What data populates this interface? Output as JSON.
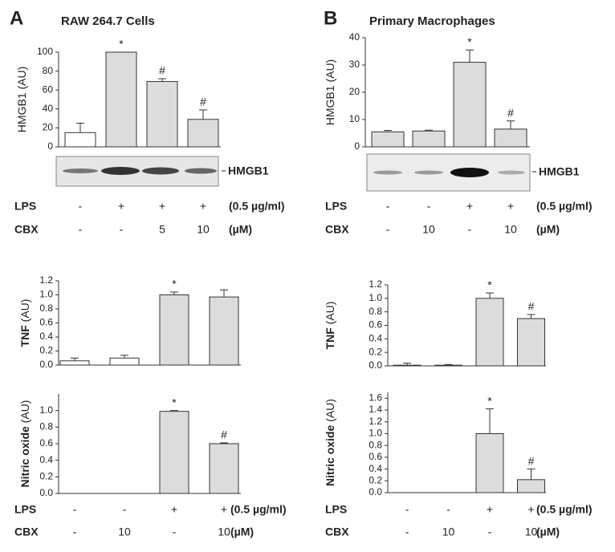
{
  "panels": [
    {
      "letter": "A",
      "title": "RAW 264.7 Cells"
    },
    {
      "letter": "B",
      "title": "Primary Macrophages"
    }
  ],
  "blots": [
    {
      "label": "HMGB1"
    },
    {
      "label": "HMGB1"
    }
  ],
  "treatment_tables": [
    {
      "rows": [
        {
          "name": "LPS",
          "cells": [
            "-",
            "+",
            "+",
            "+"
          ],
          "unit": "(0.5 µg/ml)"
        },
        {
          "name": "CBX",
          "cells": [
            "-",
            "-",
            "5",
            "10"
          ],
          "unit": "(µM)"
        }
      ]
    },
    {
      "rows": [
        {
          "name": "LPS",
          "cells": [
            "-",
            "-",
            "+",
            "+"
          ],
          "unit": "(0.5 µg/ml)"
        },
        {
          "name": "CBX",
          "cells": [
            "-",
            "10",
            "-",
            "10"
          ],
          "unit": "(µM)"
        }
      ]
    },
    {
      "rows": [
        {
          "name": "LPS",
          "cells": [
            "-",
            "-",
            "+",
            "+"
          ],
          "unit": "(0.5 µg/ml)"
        },
        {
          "name": "CBX",
          "cells": [
            "-",
            "10",
            "-",
            "10"
          ],
          "unit": "(µM)"
        }
      ]
    },
    {
      "rows": [
        {
          "name": "LPS",
          "cells": [
            "-",
            "-",
            "+",
            "+"
          ],
          "unit": "(0.5 µg/ml)"
        },
        {
          "name": "CBX",
          "cells": [
            "-",
            "10",
            "-",
            "10"
          ],
          "unit": "(µM)"
        }
      ]
    }
  ],
  "chart_data": [
    {
      "type": "bar",
      "ylabel": "HMGB1 (AU)",
      "values": [
        15,
        100,
        69,
        29
      ],
      "errors": [
        10,
        0,
        3,
        10
      ],
      "colors": [
        "#ffffff",
        "#dcdcdc",
        "#dcdcdc",
        "#dcdcdc"
      ],
      "annotations": [
        null,
        "*",
        "#",
        "#"
      ],
      "ylim": [
        0,
        100
      ],
      "yticks": [
        0,
        20,
        40,
        60,
        80,
        100
      ]
    },
    {
      "type": "bar",
      "ylabel": "HMGB1 (AU)",
      "values": [
        5.5,
        5.8,
        31,
        6.5
      ],
      "errors": [
        0.5,
        0.3,
        4.5,
        3
      ],
      "colors": [
        "#dcdcdc",
        "#dcdcdc",
        "#dcdcdc",
        "#dcdcdc"
      ],
      "annotations": [
        null,
        null,
        "*",
        "#"
      ],
      "ylim": [
        0,
        40
      ],
      "yticks": [
        0,
        10,
        20,
        30,
        40
      ]
    },
    {
      "type": "bar",
      "ylabel_bold": "TNF",
      "ylabel": "(AU)",
      "values": [
        0.06,
        0.1,
        1.0,
        0.97
      ],
      "errors": [
        0.04,
        0.04,
        0.04,
        0.1
      ],
      "colors": [
        "#ffffff",
        "#ffffff",
        "#dcdcdc",
        "#dcdcdc"
      ],
      "annotations": [
        null,
        null,
        "*",
        null
      ],
      "ylim": [
        0,
        1.2
      ],
      "yticks": [
        {
          "value": 0,
          "label": "0.0"
        },
        0.2,
        0.4,
        0.6,
        0.8,
        {
          "value": 1,
          "label": "1.0"
        },
        1.2
      ]
    },
    {
      "type": "bar",
      "ylabel_bold": "TNF",
      "ylabel": "(AU)",
      "values": [
        0.01,
        0.01,
        1.0,
        0.7
      ],
      "errors": [
        0.03,
        0.01,
        0.08,
        0.06
      ],
      "colors": [
        "#dcdcdc",
        "#dcdcdc",
        "#dcdcdc",
        "#dcdcdc"
      ],
      "annotations": [
        null,
        null,
        "*",
        "#"
      ],
      "ylim": [
        0,
        1.2
      ],
      "yticks": [
        {
          "value": 0,
          "label": "0.0"
        },
        0.2,
        0.4,
        0.6,
        0.8,
        {
          "value": 1,
          "label": "1.0"
        },
        1.2
      ]
    },
    {
      "type": "bar",
      "ylabel_bold": "Nitric oxide",
      "ylabel": "(AU)",
      "values": [
        0,
        0,
        0.99,
        0.6
      ],
      "errors": [
        0,
        0,
        0.01,
        0.01
      ],
      "colors": [
        "#dcdcdc",
        "#dcdcdc",
        "#dcdcdc",
        "#dcdcdc"
      ],
      "annotations": [
        null,
        null,
        "*",
        "#"
      ],
      "ylim": [
        0,
        1.2
      ],
      "yticks": [
        {
          "value": 0,
          "label": "0.0"
        },
        0.2,
        0.4,
        0.6,
        0.8,
        {
          "value": 1,
          "label": "1.0"
        }
      ]
    },
    {
      "type": "bar",
      "ylabel_bold": "Nitric oxide",
      "ylabel": "(AU)",
      "values": [
        0,
        0,
        1.0,
        0.22
      ],
      "errors": [
        0,
        0,
        0.42,
        0.18
      ],
      "colors": [
        "#dcdcdc",
        "#dcdcdc",
        "#dcdcdc",
        "#dcdcdc"
      ],
      "annotations": [
        null,
        null,
        "*",
        "#"
      ],
      "ylim": [
        0,
        1.7
      ],
      "yticks": [
        {
          "value": 0,
          "label": "0.0"
        },
        0.2,
        0.4,
        0.6,
        0.8,
        {
          "value": 1,
          "label": "1.0"
        },
        1.2,
        1.4,
        1.6
      ]
    }
  ]
}
